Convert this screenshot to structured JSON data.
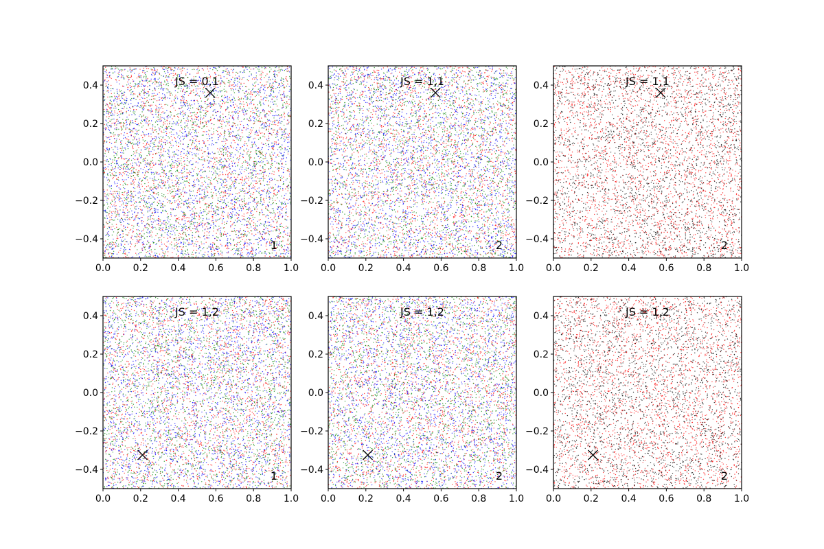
{
  "chart_data": [
    {
      "type": "scatter",
      "title": "JS = 0,1",
      "corner_label": "1",
      "xlim": [
        0.0,
        1.0
      ],
      "ylim": [
        -0.5,
        0.5
      ],
      "xticks": [
        "0.0",
        "0.2",
        "0.4",
        "0.6",
        "0.8",
        "1.0"
      ],
      "yticks": [
        "-0.4",
        "-0.2",
        "0.0",
        "0.2",
        "0.4"
      ],
      "marker": {
        "x": 0.57,
        "y": 0.36,
        "symbol": "x"
      },
      "series_colors": [
        "#ff0000",
        "#008000",
        "#0000ff"
      ],
      "points_per_series": 2200
    },
    {
      "type": "scatter",
      "title": "JS = 1,1",
      "corner_label": "2",
      "xlim": [
        0.0,
        1.0
      ],
      "ylim": [
        -0.5,
        0.5
      ],
      "xticks": [
        "0.0",
        "0.2",
        "0.4",
        "0.6",
        "0.8",
        "1.0"
      ],
      "yticks": [
        "-0.4",
        "-0.2",
        "0.0",
        "0.2",
        "0.4"
      ],
      "marker": {
        "x": 0.57,
        "y": 0.36,
        "symbol": "x"
      },
      "series_colors": [
        "#ff0000",
        "#008000",
        "#0000ff"
      ],
      "points_per_series": 2200
    },
    {
      "type": "scatter",
      "title": "JS = 1,1",
      "corner_label": "2",
      "xlim": [
        0.0,
        1.0
      ],
      "ylim": [
        -0.5,
        0.5
      ],
      "xticks": [
        "0.0",
        "0.2",
        "0.4",
        "0.6",
        "0.8",
        "1.0"
      ],
      "yticks": [
        "-0.4",
        "-0.2",
        "0.0",
        "0.2",
        "0.4"
      ],
      "marker": {
        "x": 0.57,
        "y": 0.36,
        "symbol": "x"
      },
      "series_colors": [
        "#ff0000",
        "#000000"
      ],
      "points_per_series": 2600
    },
    {
      "type": "scatter",
      "title": "JS = 1,2",
      "corner_label": "1",
      "xlim": [
        0.0,
        1.0
      ],
      "ylim": [
        -0.5,
        0.5
      ],
      "xticks": [
        "0.0",
        "0.2",
        "0.4",
        "0.6",
        "0.8",
        "1.0"
      ],
      "yticks": [
        "-0.4",
        "-0.2",
        "0.0",
        "0.2",
        "0.4"
      ],
      "marker": {
        "x": 0.21,
        "y": -0.325,
        "symbol": "x"
      },
      "series_colors": [
        "#ff0000",
        "#008000",
        "#0000ff"
      ],
      "points_per_series": 2200
    },
    {
      "type": "scatter",
      "title": "JS = 1,2",
      "corner_label": "2",
      "xlim": [
        0.0,
        1.0
      ],
      "ylim": [
        -0.5,
        0.5
      ],
      "xticks": [
        "0.0",
        "0.2",
        "0.4",
        "0.6",
        "0.8",
        "1.0"
      ],
      "yticks": [
        "-0.4",
        "-0.2",
        "0.0",
        "0.2",
        "0.4"
      ],
      "marker": {
        "x": 0.21,
        "y": -0.325,
        "symbol": "x"
      },
      "series_colors": [
        "#ff0000",
        "#008000",
        "#0000ff"
      ],
      "points_per_series": 2200
    },
    {
      "type": "scatter",
      "title": "JS = 1,2",
      "corner_label": "2",
      "xlim": [
        0.0,
        1.0
      ],
      "ylim": [
        -0.5,
        0.5
      ],
      "xticks": [
        "0.0",
        "0.2",
        "0.4",
        "0.6",
        "0.8",
        "1.0"
      ],
      "yticks": [
        "-0.4",
        "-0.2",
        "0.0",
        "0.2",
        "0.4"
      ],
      "marker": {
        "x": 0.21,
        "y": -0.325,
        "symbol": "x"
      },
      "series_colors": [
        "#ff0000",
        "#000000"
      ],
      "points_per_series": 2600
    }
  ]
}
